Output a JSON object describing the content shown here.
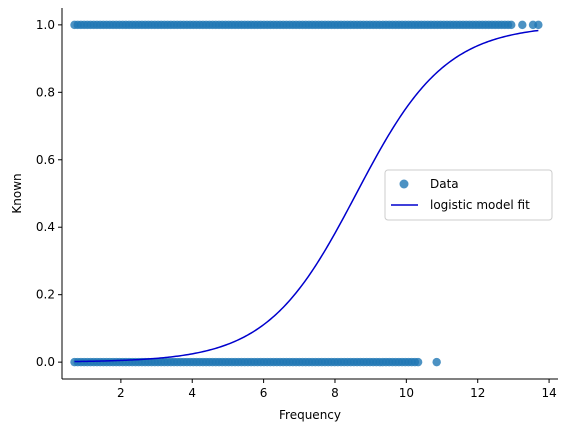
{
  "chart_data": {
    "type": "scatter",
    "title": "",
    "xlabel": "Frequency",
    "ylabel": "Known",
    "xlim": [
      0.35,
      14.25
    ],
    "ylim": [
      -0.05,
      1.05
    ],
    "x_ticks": [
      2,
      4,
      6,
      8,
      10,
      12,
      14
    ],
    "x_tick_labels": [
      "2",
      "4",
      "6",
      "8",
      "10",
      "12",
      "14"
    ],
    "y_ticks": [
      0.0,
      0.2,
      0.4,
      0.6,
      0.8,
      1.0
    ],
    "y_tick_labels": [
      "0.0",
      "0.2",
      "0.4",
      "0.6",
      "0.8",
      "1.0"
    ],
    "grid": false,
    "legend_position": "center-right",
    "series": [
      {
        "name": "Data",
        "kind": "scatter",
        "color": "#1f77b4",
        "clusters": [
          {
            "y": 0,
            "x_dense_range": [
              0.7,
              10.4
            ],
            "x_outliers": [
              10.85
            ]
          },
          {
            "y": 1,
            "x_dense_range": [
              0.7,
              13.0
            ],
            "x_outliers": [
              13.25,
              13.55,
              13.7
            ]
          }
        ]
      },
      {
        "name": "logistic model fit",
        "kind": "line",
        "color": "#0000cd",
        "x_range": [
          0.7,
          13.7
        ],
        "midpoint": 8.6,
        "slope": 0.8
      }
    ]
  }
}
